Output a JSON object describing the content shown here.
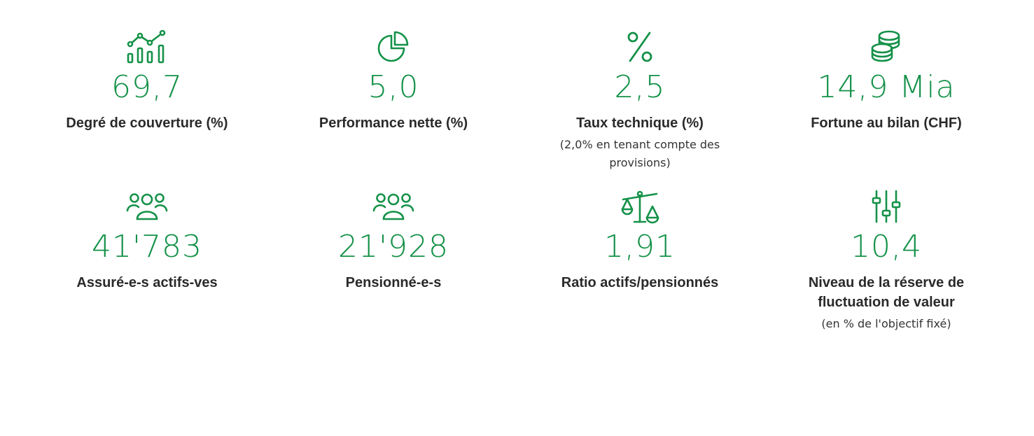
{
  "accent_color": "#149148",
  "stats": [
    {
      "icon": "chart-icon",
      "value": "69,7",
      "label": "Degré de couverture (%)",
      "note": ""
    },
    {
      "icon": "pie-chart-icon",
      "value": "5,0",
      "label": "Performance nette (%)",
      "note": ""
    },
    {
      "icon": "percent-icon",
      "value": "2,5",
      "label": "Taux technique (%)",
      "note": "(2,0% en tenant compte des provisions)"
    },
    {
      "icon": "coins-icon",
      "value": "14,9 Mia",
      "label": "Fortune au bilan (CHF)",
      "note": ""
    },
    {
      "icon": "people-icon",
      "value": "41'783",
      "label": "Assuré-e-s actifs-ves",
      "note": ""
    },
    {
      "icon": "people-icon",
      "value": "21'928",
      "label": "Pensionné-e-s",
      "note": ""
    },
    {
      "icon": "scale-icon",
      "value": "1,91",
      "label": "Ratio actifs/pensionnés",
      "note": ""
    },
    {
      "icon": "sliders-icon",
      "value": "10,4",
      "label": "Niveau de la réserve de fluctuation de valeur",
      "note": "(en % de l'objectif fixé)"
    }
  ]
}
